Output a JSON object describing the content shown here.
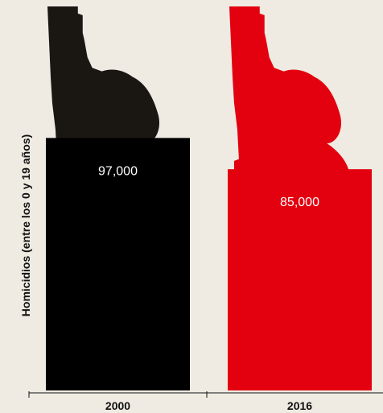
{
  "colors": {
    "background": "#efebe2",
    "series_2000": "#000000",
    "series_2016": "#e3000f",
    "revolver_2000": "#1a1713",
    "label_text": "#ffffff",
    "axis_text": "#111111"
  },
  "icons": {
    "bar_decoration": "revolver-icon"
  },
  "chart_data": {
    "type": "bar",
    "title": "",
    "xlabel": "",
    "ylabel": "Homicidios (entre los 0 y 19 años)",
    "categories": [
      "2000",
      "2016"
    ],
    "values": [
      97000,
      85000
    ],
    "value_labels": [
      "97,000",
      "85,000"
    ],
    "ylim": [
      0,
      150000
    ],
    "grid": false,
    "legend": "none"
  }
}
